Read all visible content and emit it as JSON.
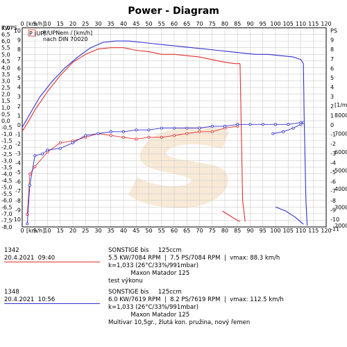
{
  "title": "Power - Diagram",
  "chart_data": {
    "type": "line",
    "title": "Power - Diagram",
    "xlabel": "[km/h]",
    "x_ticks": [
      0,
      5,
      10,
      15,
      20,
      25,
      30,
      35,
      40,
      45,
      50,
      55,
      60,
      65,
      70,
      75,
      80,
      85,
      90,
      95,
      100,
      105,
      110,
      115,
      120
    ],
    "xlim": [
      0,
      120
    ],
    "left_axis_labels": [
      "KW",
      "PS"
    ],
    "kw_ticks": [
      "7,0",
      "6,5",
      "6,0",
      "5,5",
      "5,0",
      "4,5",
      "4,0",
      "3,5",
      "3,0",
      "2,5",
      "2,0",
      "1,5",
      "1,0",
      "0,5",
      "0,0",
      "-0,5",
      "-1,0",
      "-1,5",
      "-2,0",
      "-2,5",
      "-3,0",
      "-3,5",
      "-4,0",
      "-4,5",
      "-5,0",
      "-5,5",
      "-6,0",
      "-6,5",
      "-7,0",
      "-7,5",
      "-8,0"
    ],
    "ps_ticks_left": [
      "10",
      "9",
      "8",
      "7",
      "6",
      "5",
      "4",
      "3",
      "2",
      "1",
      "0",
      "-1",
      "-2",
      "-3",
      "-4",
      "-5",
      "-6",
      "-7",
      "-8",
      "-9",
      "-10"
    ],
    "ps_ticks_right": [
      "PS",
      "9",
      "8",
      "7",
      "6",
      "5",
      "4",
      "3",
      "2",
      "1",
      "0",
      "-1",
      "-2",
      "-3",
      "-4",
      "-5",
      "-6",
      "-7",
      "-8",
      "-9",
      "-10",
      "-11"
    ],
    "rpm_label": "[1/min]",
    "rpm_ticks": [
      "8000",
      "7000",
      "6000",
      "5000",
      "4000",
      "3000",
      "2000"
    ],
    "legend_header": [
      "P (UP)",
      "P/UPNem / [km/h]",
      "nach DIN 70020"
    ],
    "grid": true,
    "series": [
      {
        "name": "1342",
        "color": "#e03030",
        "power_kw": [
          [
            0,
            -0.8
          ],
          [
            2,
            -0.2
          ],
          [
            5,
            0.8
          ],
          [
            10,
            2.2
          ],
          [
            15,
            3.4
          ],
          [
            20,
            4.4
          ],
          [
            25,
            5.0
          ],
          [
            30,
            5.4
          ],
          [
            35,
            5.5
          ],
          [
            40,
            5.5
          ],
          [
            45,
            5.3
          ],
          [
            50,
            5.2
          ],
          [
            55,
            5.0
          ],
          [
            60,
            5.0
          ],
          [
            65,
            4.9
          ],
          [
            70,
            4.8
          ],
          [
            75,
            4.6
          ],
          [
            80,
            4.4
          ],
          [
            84,
            4.3
          ],
          [
            86,
            4.3
          ]
        ],
        "power_drop_kw": [
          [
            86,
            4.3
          ],
          [
            86.5,
            -0.6
          ],
          [
            87,
            -6.0
          ],
          [
            88,
            -7.6
          ]
        ],
        "power_tail_kw": [
          [
            79,
            -6.8
          ],
          [
            84,
            -7.4
          ],
          [
            86,
            -7.6
          ]
        ],
        "rpm": [
          [
            2,
            2600
          ],
          [
            3,
            4800
          ],
          [
            5,
            5200
          ],
          [
            10,
            6000
          ],
          [
            15,
            6500
          ],
          [
            20,
            6600
          ],
          [
            25,
            6800
          ],
          [
            30,
            7000
          ],
          [
            35,
            6900
          ],
          [
            40,
            6800
          ],
          [
            45,
            6700
          ],
          [
            50,
            6800
          ],
          [
            55,
            6800
          ],
          [
            60,
            6900
          ],
          [
            65,
            7000
          ],
          [
            70,
            7100
          ],
          [
            75,
            7100
          ],
          [
            80,
            7300
          ],
          [
            85,
            7400
          ]
        ]
      },
      {
        "name": "1348",
        "color": "#3030d0",
        "power_kw": [
          [
            0,
            -0.5
          ],
          [
            3,
            0.5
          ],
          [
            7,
            1.8
          ],
          [
            12,
            3.0
          ],
          [
            17,
            4.0
          ],
          [
            22,
            4.8
          ],
          [
            27,
            5.5
          ],
          [
            32,
            5.9
          ],
          [
            37,
            6.0
          ],
          [
            42,
            6.0
          ],
          [
            47,
            5.9
          ],
          [
            52,
            5.8
          ],
          [
            57,
            5.7
          ],
          [
            62,
            5.6
          ],
          [
            67,
            5.5
          ],
          [
            72,
            5.4
          ],
          [
            77,
            5.3
          ],
          [
            82,
            5.2
          ],
          [
            87,
            5.1
          ],
          [
            92,
            5.0
          ],
          [
            97,
            5.0
          ],
          [
            102,
            4.9
          ],
          [
            107,
            4.8
          ],
          [
            110,
            4.6
          ],
          [
            111,
            4.3
          ]
        ],
        "power_drop_kw": [
          [
            111,
            4.3
          ],
          [
            111.3,
            0.5
          ],
          [
            112,
            -6.0
          ],
          [
            112.5,
            -7.9
          ]
        ],
        "power_tail_kw": [
          [
            100,
            -6.5
          ],
          [
            104,
            -6.8
          ],
          [
            108,
            -7.3
          ],
          [
            111,
            -7.8
          ]
        ],
        "rpm": [
          [
            2,
            2100
          ],
          [
            3,
            4200
          ],
          [
            5,
            5800
          ],
          [
            8,
            5900
          ],
          [
            10,
            6100
          ],
          [
            15,
            6200
          ],
          [
            20,
            6500
          ],
          [
            25,
            6900
          ],
          [
            30,
            7000
          ],
          [
            35,
            7100
          ],
          [
            40,
            7100
          ],
          [
            45,
            7200
          ],
          [
            50,
            7200
          ],
          [
            55,
            7300
          ],
          [
            60,
            7300
          ],
          [
            65,
            7300
          ],
          [
            70,
            7300
          ],
          [
            75,
            7400
          ],
          [
            80,
            7400
          ],
          [
            85,
            7500
          ],
          [
            90,
            7500
          ],
          [
            95,
            7500
          ],
          [
            100,
            7500
          ],
          [
            105,
            7500
          ],
          [
            110,
            7600
          ]
        ],
        "rpm_tail": [
          [
            99,
            7000
          ],
          [
            103,
            7100
          ],
          [
            107,
            7300
          ],
          [
            110,
            7500
          ],
          [
            111,
            7600
          ]
        ]
      }
    ]
  },
  "legend": [
    {
      "id": "1342",
      "datetime": "20.4.2021  09:40",
      "color": "#e03030",
      "lines": [
        "SONSTIGE bis     125ccm",
        "5.5 KW/7084 RPM  |  7.5 PS/7084 RPM  |  vmax: 88.3 km/h",
        "k=1,033 (26°C/33%/991mbar)",
        "            Maxon Matador 125",
        "test výkonu"
      ]
    },
    {
      "id": "1348",
      "datetime": "20.4.2021  10:56",
      "color": "#3030d0",
      "lines": [
        "SONSTIGE bis     125ccm",
        "6.0 KW/7619 RPM  |  8.2 PS/7619 RPM  |  vmax: 112.5 km/h",
        "k=1,033 (26°C/33%/991mbar)",
        "            Maxon Matador 125",
        "Multivar 10,5gr., žlutá kon. pružina, nový řemen"
      ]
    }
  ]
}
